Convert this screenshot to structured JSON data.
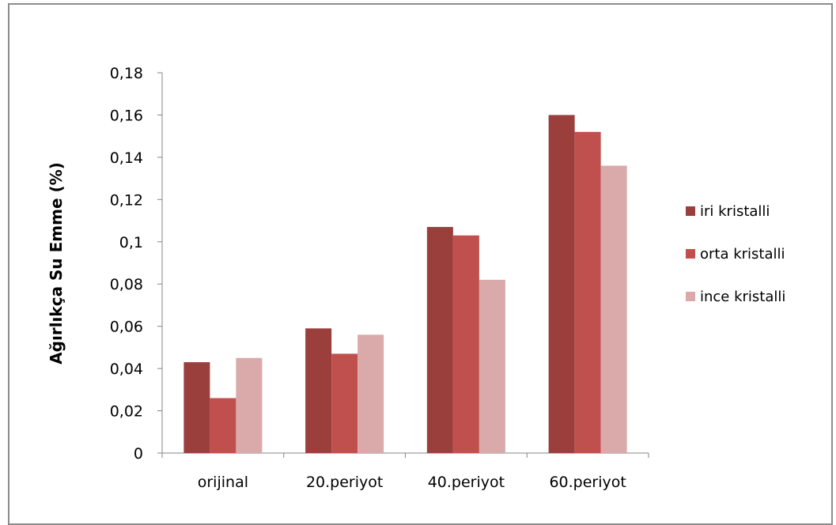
{
  "chart_data": {
    "type": "bar",
    "title": "",
    "xlabel": "",
    "ylabel": "Ağırlıkça Su Emme (%)",
    "ylim": [
      0,
      0.18
    ],
    "y_ticks": [
      0,
      0.02,
      0.04,
      0.06,
      0.08,
      0.1,
      0.12,
      0.14,
      0.16,
      0.18
    ],
    "y_tick_labels": [
      "0",
      "0,02",
      "0,04",
      "0,06",
      "0,08",
      "0,1",
      "0,12",
      "0,14",
      "0,16",
      "0,18"
    ],
    "categories": [
      "orijinal",
      "20.periyot",
      "40.periyot",
      "60.periyot"
    ],
    "series": [
      {
        "name": "iri kristalli",
        "color": "#9b3f3d",
        "values": [
          0.043,
          0.059,
          0.107,
          0.16
        ]
      },
      {
        "name": "orta kristalli",
        "color": "#c0504d",
        "values": [
          0.026,
          0.047,
          0.103,
          0.152
        ]
      },
      {
        "name": "ince kristalli",
        "color": "#d9aaa9",
        "values": [
          0.045,
          0.056,
          0.082,
          0.136
        ]
      }
    ],
    "grid": false,
    "legend_position": "right"
  }
}
